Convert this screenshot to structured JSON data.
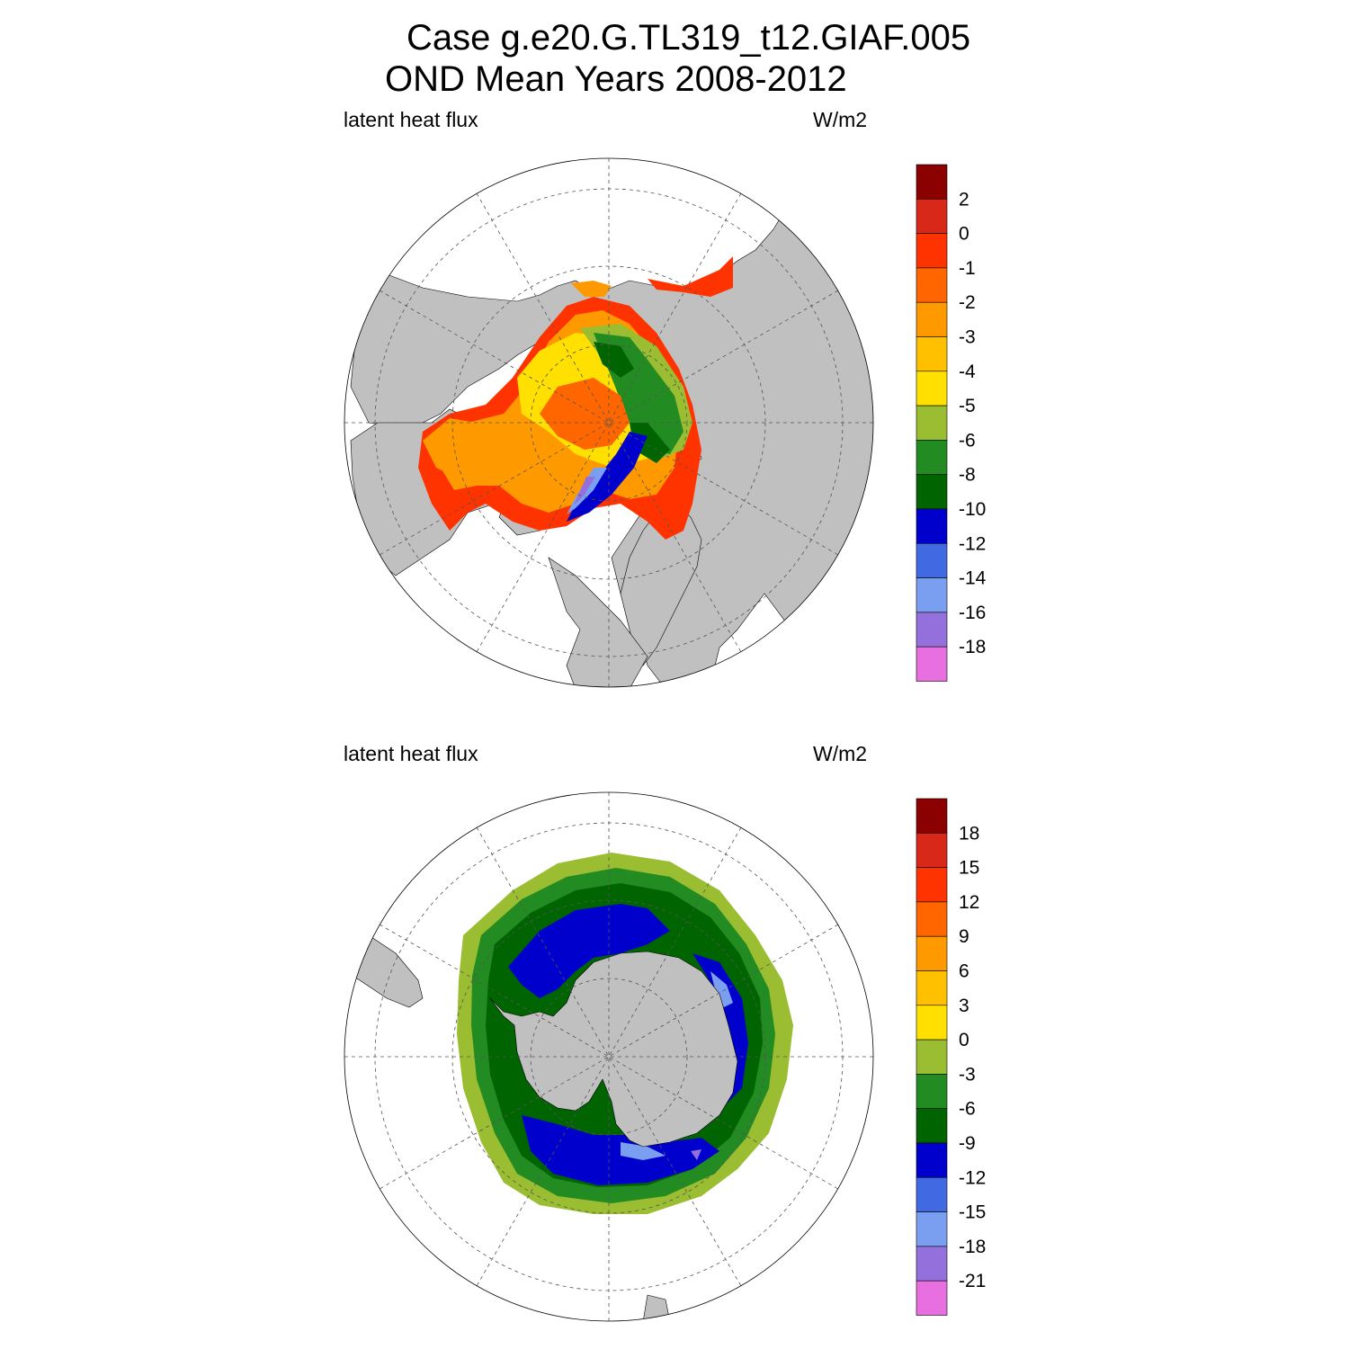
{
  "title_line1": "Case g.e20.G.TL319_t12.GIAF.005",
  "title_line2": "OND Mean   Years 2008-2012",
  "panels": [
    {
      "name": "arctic",
      "variable_label": "latent heat flux",
      "units_label": "W/m2",
      "colorbar": {
        "tick_labels": [
          "2",
          "0",
          "-1",
          "-2",
          "-3",
          "-4",
          "-5",
          "-6",
          "-8",
          "-10",
          "-12",
          "-14",
          "-16",
          "-18"
        ],
        "colors": [
          "#8b0000",
          "#d8281a",
          "#ff3300",
          "#ff6600",
          "#ff9900",
          "#ffc000",
          "#ffe000",
          "#9abd32",
          "#228b22",
          "#006400",
          "#0000cd",
          "#4169e1",
          "#7b9ff0",
          "#9370db",
          "#e86fe0"
        ]
      }
    },
    {
      "name": "antarctic",
      "variable_label": "latent heat flux",
      "units_label": "W/m2",
      "colorbar": {
        "tick_labels": [
          "18",
          "15",
          "12",
          "9",
          "6",
          "3",
          "0",
          "-3",
          "-6",
          "-9",
          "-12",
          "-15",
          "-18",
          "-21"
        ],
        "colors": [
          "#8b0000",
          "#d8281a",
          "#ff3300",
          "#ff6600",
          "#ff9900",
          "#ffc000",
          "#ffe000",
          "#9abd32",
          "#228b22",
          "#006400",
          "#0000cd",
          "#4169e1",
          "#7b9ff0",
          "#9370db",
          "#e86fe0"
        ]
      }
    }
  ],
  "colors": {
    "land": "#c0c0c0",
    "ocean_no_ice": "#ffffff",
    "coastline": "#000000"
  }
}
